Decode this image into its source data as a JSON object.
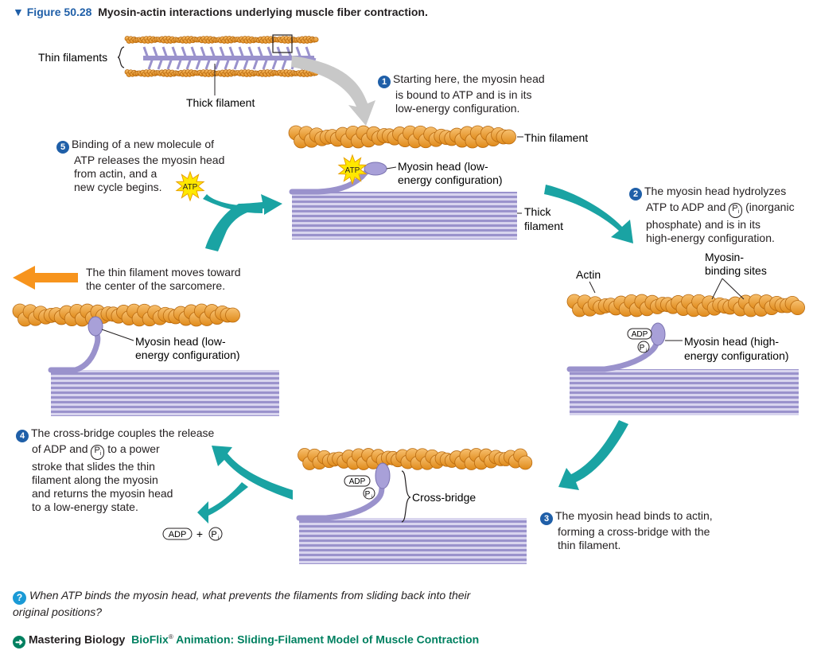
{
  "figure": {
    "number": "Figure 50.28",
    "title": "Myosin-actin interactions underlying muscle fiber contraction."
  },
  "labels": {
    "thin_filaments": "Thin filaments",
    "thick_filament": "Thick filament",
    "thin_filament": "Thin filament",
    "thick_filament_2line_a": "Thick",
    "thick_filament_2line_b": "filament",
    "actin": "Actin",
    "myosin_binding_a": "Myosin-",
    "myosin_binding_b": "binding sites",
    "cross_bridge": "Cross-bridge",
    "atp": "ATP",
    "adp": "ADP",
    "pi": "P",
    "pi_sub": "i",
    "plus": "+",
    "myosin_low_a": "Myosin head (low-",
    "myosin_low_b": "energy configuration)",
    "myosin_high_a": "Myosin head (high-",
    "myosin_high_b": "energy configuration)"
  },
  "steps": {
    "s1": {
      "n": "1",
      "lines": [
        "Starting here, the myosin head",
        "is bound to ATP and is in its",
        "low-energy configuration."
      ]
    },
    "s2": {
      "n": "2",
      "line1": "The myosin head hydrolyzes",
      "line2a": "ATP to ADP and",
      "line2b": "(inorganic",
      "line3": "phosphate) and is in its",
      "line4": "high-energy configuration."
    },
    "s3": {
      "n": "3",
      "lines": [
        "The myosin head binds to actin,",
        "forming a cross-bridge with the",
        "thin filament."
      ]
    },
    "s4": {
      "n": "4",
      "line1": "The cross-bridge couples the release",
      "line2a": "of ADP and",
      "line2b": "to a power",
      "line3": "stroke that slides the thin",
      "line4": "filament along the myosin",
      "line5": "and returns the myosin head",
      "line6": "to a low-energy state."
    },
    "s5": {
      "n": "5",
      "lines": [
        "Binding of a new molecule of",
        "ATP releases the myosin head",
        "from actin, and a",
        "new cycle begins."
      ]
    }
  },
  "movement": {
    "line1": "The thin filament moves toward",
    "line2": "the center of the sarcomere."
  },
  "question": {
    "mark": "?",
    "text": "When ATP binds the myosin head, what prevents the filaments from sliding back into their original positions?"
  },
  "mastering": {
    "lead": "Mastering Biology",
    "brand": "BioFlix",
    "reg": "®",
    "rest": "Animation: Sliding-Filament Model of Muscle Contraction"
  },
  "colors": {
    "actin": "#f0a030",
    "myosin": "#a8a0d8",
    "arrow_teal": "#1aa3a3",
    "arrow_orange": "#f7941d",
    "atp_star": "#ffe800",
    "gray_arrow": "#c8c8c8",
    "step_blue": "#1f5fa8"
  }
}
